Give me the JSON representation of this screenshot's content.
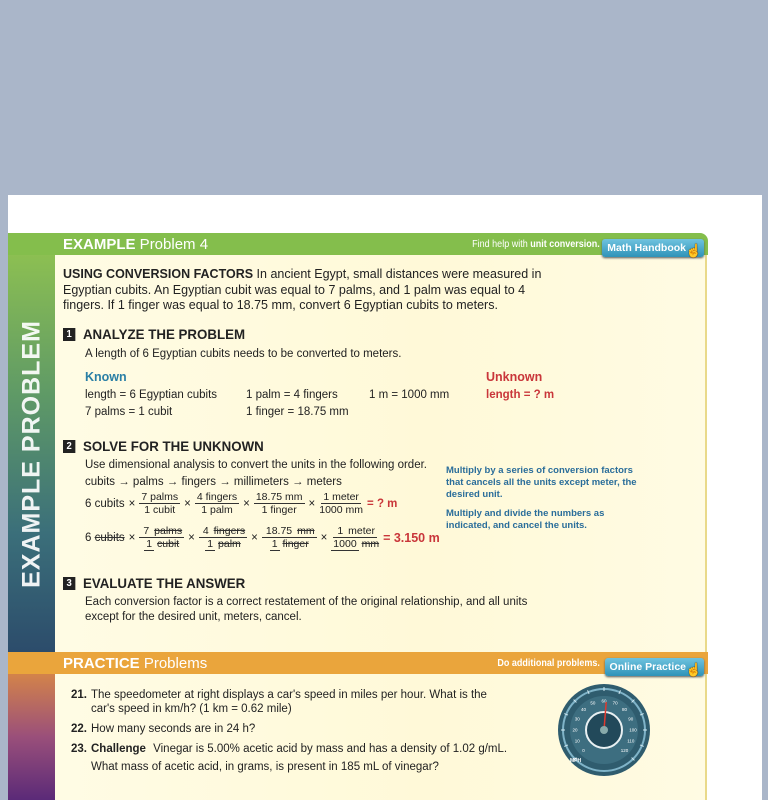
{
  "example": {
    "title_bold": "EXAMPLE",
    "title_rest": " Problem 4",
    "help_prefix": "Find help with ",
    "help_bold": "unit conversion.",
    "button": "Math Handbook",
    "side_label": "EXAMPLE PROBLEM",
    "intro_bold": "USING CONVERSION FACTORS",
    "intro": " In ancient Egypt, small distances were measured in Egyptian cubits. An Egyptian cubit was equal to 7 palms, and 1 palm was equal to 4 fingers. If 1 finger was equal to 18.75 mm, convert 6 Egyptian cubits to meters.",
    "step1": {
      "num": "1",
      "title": "ANALYZE THE PROBLEM",
      "text": "A length of 6 Egyptian cubits needs to be converted to meters.",
      "known_label": "Known",
      "known": [
        "length = 6 Egyptian cubits",
        "1 palm = 4 fingers",
        "1 m = 1000 mm",
        "7 palms = 1 cubit",
        "1 finger = 18.75 mm"
      ],
      "unknown_label": "Unknown",
      "unknown": "length = ? m"
    },
    "step2": {
      "num": "2",
      "title": "SOLVE FOR THE UNKNOWN",
      "text": "Use dimensional analysis to convert the units in the following order.",
      "order": "cubits → palms → fingers → millimeters → meters",
      "start": "6 cubits",
      "start_num": "6",
      "start_unit": "cubits",
      "times": "×",
      "fractions": [
        {
          "top": "7 palms",
          "bottom": "1 cubit",
          "tn": "7",
          "tu": "palms",
          "bn": "1",
          "bu": "cubit"
        },
        {
          "top": "4 fingers",
          "bottom": "1 palm",
          "tn": "4",
          "tu": "fingers",
          "bn": "1",
          "bu": "palm"
        },
        {
          "top": "18.75 mm",
          "bottom": "1 finger",
          "tn": "18.75",
          "tu": "mm",
          "bn": "1",
          "bu": "finger"
        },
        {
          "top": "1 meter",
          "bottom": "1000 mm",
          "tn": "1",
          "tu": "meter",
          "bn": "1000",
          "bu": "mm"
        }
      ],
      "result1": "= ? m",
      "result2": "= 3.150 m",
      "note1": "Multiply by a series of conversion factors that cancels all the units except meter, the desired unit.",
      "note2": "Multiply and divide the numbers as indicated, and cancel the units."
    },
    "step3": {
      "num": "3",
      "title": "EVALUATE THE ANSWER",
      "text": "Each conversion factor is a correct restatement of the original relationship, and all units except for the desired unit, meters, cancel."
    }
  },
  "practice": {
    "title_bold": "PRACTICE",
    "title_rest": " Problems",
    "help": "Do additional problems.",
    "button": "Online Practice",
    "problems": [
      {
        "num": "21.",
        "text": "The speedometer at right displays a car's speed in miles per hour. What is the",
        "text2": "car's speed in km/h? (1 km = 0.62 mile)"
      },
      {
        "num": "22.",
        "text": "How many seconds are in 24 h?"
      },
      {
        "num": "23.",
        "bold": "Challenge",
        "text": " Vinegar is 5.00% acetic acid by mass and has a density of 1.02 g/mL.",
        "text2": "What mass of acetic acid, in grams, is present in 185 mL of vinegar?"
      }
    ],
    "speedometer": {
      "unit": "MPH",
      "ticks": [
        "0",
        "10",
        "20",
        "30",
        "40",
        "50",
        "60",
        "70",
        "80",
        "90",
        "100",
        "110",
        "120"
      ],
      "needle_mph": 62
    }
  },
  "colors": {
    "green": "#84be4c",
    "orange": "#eaa53c",
    "known": "#2a7fa5",
    "red": "#c9363a"
  }
}
